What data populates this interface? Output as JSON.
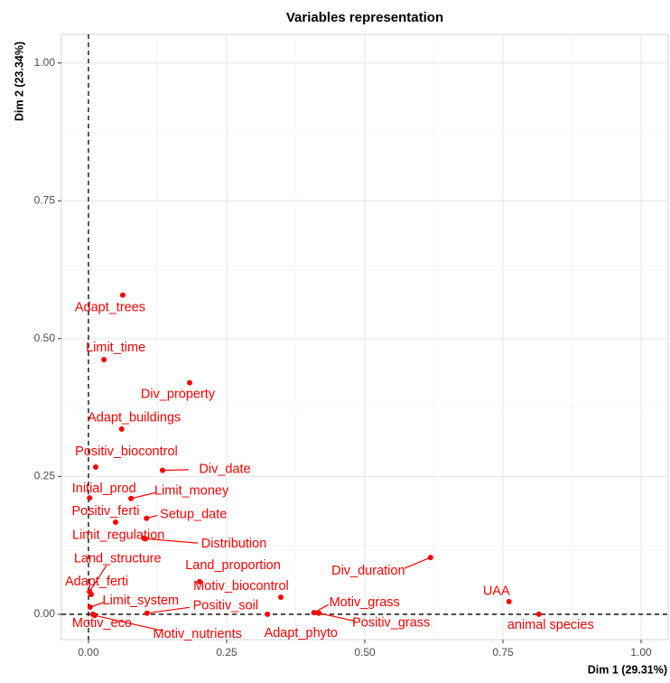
{
  "chart_data": {
    "type": "scatter",
    "title": "Variables representation",
    "x_label": "Dim 1 (29.31%)",
    "y_label": "Dim 2 (23.34%)",
    "color": "#ff0000",
    "labels": [
      "Adapt_trees",
      "Limit_time",
      "Div_property",
      "Adapt_buildings",
      "Positiv_biocontrol",
      "Div_date",
      "Initial_prod",
      "Limit_money",
      "Positiv_ferti",
      "Setup_date",
      "Limit_regulation",
      "Distribution",
      "Land_structure",
      "Adapt_ferti",
      "Land_proportion",
      "Div_duration",
      "Motiv_biocontrol",
      "Limit_system",
      "Positiv_soil",
      "Motiv_grass",
      "Positiv_grass",
      "Adapt_phyto",
      "Motiv_eco",
      "Motiv_nutrients",
      "UAA",
      "animal species"
    ],
    "x": [
      0.062,
      0.028,
      0.183,
      0.06,
      0.013,
      0.134,
      0.002,
      0.077,
      0.049,
      0.105,
      0.1,
      0.103,
      0.002,
      0.005,
      0.201,
      0.619,
      0.348,
      0.003,
      0.106,
      0.408,
      0.417,
      0.324,
      0.008,
      0.011,
      0.761,
      0.815
    ],
    "y": [
      0.579,
      0.462,
      0.42,
      0.336,
      0.267,
      0.261,
      0.211,
      0.21,
      0.167,
      0.174,
      0.138,
      0.137,
      0.041,
      0.036,
      0.059,
      0.103,
      0.031,
      0.013,
      0.002,
      0.003,
      0.002,
      0.0,
      0.0,
      -0.002,
      0.023,
      0.0
    ],
    "xlim": [
      -0.049,
      1.049
    ],
    "ylim": [
      -0.046,
      1.052
    ],
    "xticks": [
      {
        "value": 0,
        "label": "0.00"
      },
      {
        "value": 0.25,
        "label": "0.25"
      },
      {
        "value": 0.5,
        "label": "0.50"
      },
      {
        "value": 0.75,
        "label": "0.75"
      },
      {
        "value": 1,
        "label": "1.00"
      }
    ],
    "yticks": [
      {
        "value": 0,
        "label": "0.00"
      },
      {
        "value": 0.25,
        "label": "0.25"
      },
      {
        "value": 0.5,
        "label": "0.50"
      },
      {
        "value": 0.75,
        "label": "0.75"
      },
      {
        "value": 1,
        "label": "1.00"
      }
    ],
    "grid": true
  }
}
